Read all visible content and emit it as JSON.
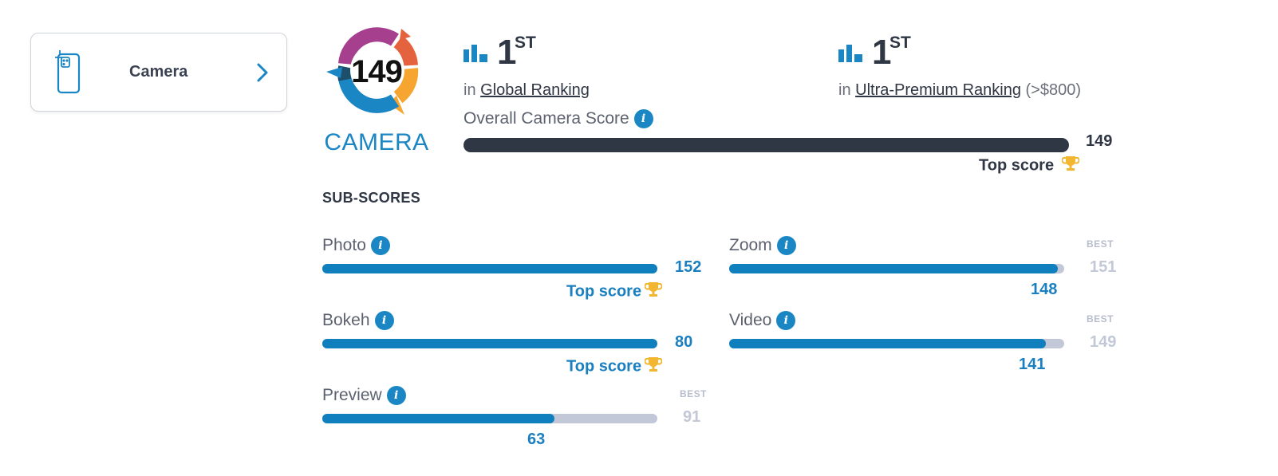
{
  "nav_card": {
    "label": "Camera",
    "icon": "phone-camera-icon",
    "arrow_icon": "chevron-right-icon"
  },
  "badge": {
    "score": "149",
    "label": "CAMERA",
    "colors": [
      "#a63f8e",
      "#e4623e",
      "#f5a530",
      "#1b86c4",
      "#1c4f6b"
    ]
  },
  "rankings": [
    {
      "position": "1",
      "suffix": "ST",
      "prefix": "in",
      "link": "Global Ranking",
      "extra": ""
    },
    {
      "position": "1",
      "suffix": "ST",
      "prefix": "in",
      "link": "Ultra-Premium Ranking",
      "extra": "(>$800)"
    }
  ],
  "overall": {
    "label": "Overall Camera Score",
    "value": "149",
    "top_score_label": "Top score",
    "fraction": 1.0
  },
  "subscores": {
    "title": "SUB-SCORES",
    "best_label": "BEST",
    "top_score_label": "Top score",
    "items": [
      {
        "label": "Photo",
        "value": "152",
        "best": "",
        "fraction": 1.0,
        "top": true
      },
      {
        "label": "Zoom",
        "value": "148",
        "best": "151",
        "fraction": 0.98,
        "top": false
      },
      {
        "label": "Bokeh",
        "value": "80",
        "best": "",
        "fraction": 1.0,
        "top": true
      },
      {
        "label": "Video",
        "value": "141",
        "best": "149",
        "fraction": 0.946,
        "top": false
      },
      {
        "label": "Preview",
        "value": "63",
        "best": "91",
        "fraction": 0.692,
        "top": false
      }
    ]
  },
  "colors": {
    "accent": "#1a87c4",
    "bar_dark": "#2f3644",
    "bar_track": "#c2c8d8",
    "trophy": "#f3b630"
  }
}
